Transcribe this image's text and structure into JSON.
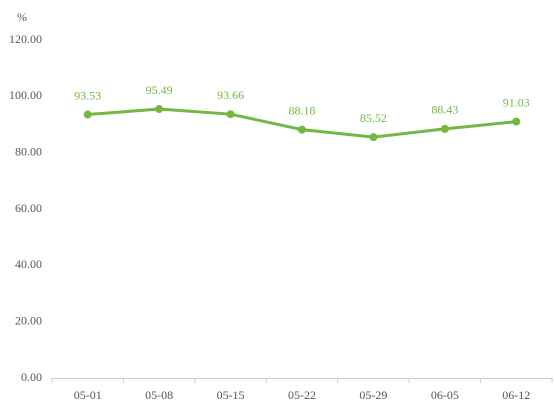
{
  "chart_data": {
    "type": "line",
    "y_label": "%",
    "categories": [
      "05-01",
      "05-08",
      "05-15",
      "05-22",
      "05-29",
      "06-05",
      "06-12"
    ],
    "values": [
      93.53,
      95.49,
      93.66,
      88.18,
      85.52,
      88.43,
      91.03
    ],
    "color": "#72b843",
    "ylim": [
      0,
      120
    ],
    "yticks": [
      {
        "value": 0,
        "label": "0.00"
      },
      {
        "value": 20,
        "label": "20.00"
      },
      {
        "value": 40,
        "label": "40.00"
      },
      {
        "value": 60,
        "label": "60.00"
      },
      {
        "value": 80,
        "label": "80.00"
      },
      {
        "value": 100,
        "label": "100.00"
      },
      {
        "value": 120,
        "label": "120.00"
      }
    ],
    "grid": false
  }
}
